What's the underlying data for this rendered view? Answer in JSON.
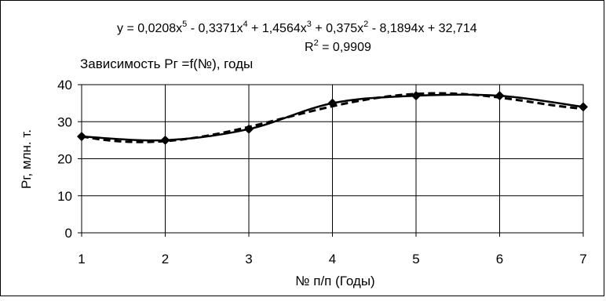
{
  "chart_data": {
    "type": "line",
    "title": "Зависимость Рг =f(№), годы",
    "xlabel": "№ п/п (Годы)",
    "ylabel": "Рг, млн. т.",
    "x": [
      1,
      2,
      3,
      4,
      5,
      6,
      7
    ],
    "x_tick_labels": [
      "1",
      "2",
      "3",
      "4",
      "5",
      "6",
      "7"
    ],
    "y_tick_labels": [
      "0",
      "10",
      "20",
      "30",
      "40"
    ],
    "xlim": [
      1,
      7
    ],
    "ylim": [
      0,
      40
    ],
    "grid": true,
    "series": [
      {
        "values": [
          26,
          25,
          28,
          35,
          37,
          37,
          34
        ],
        "style": "solid",
        "marker": "diamond",
        "color": "#000000"
      },
      {
        "trendline": "polynomial",
        "order": 5,
        "style": "dashed",
        "color": "#000000",
        "coefficients": [
          0.0208,
          -0.3371,
          1.4564,
          0.375,
          -8.1894,
          32.714
        ]
      }
    ],
    "trendline_equation": {
      "prefix": "y = 0,0208x",
      "sup1": "5",
      "t2": " - 0,3371x",
      "sup2": "4",
      "t3": " + 1,4564x",
      "sup3": "3",
      "t4": " + 0,375x",
      "sup4": "2",
      "t5": " - 8,1894x + 32,714"
    },
    "r_squared": {
      "prefix": "R",
      "sup": "2",
      "suffix": " = 0,9909"
    }
  }
}
